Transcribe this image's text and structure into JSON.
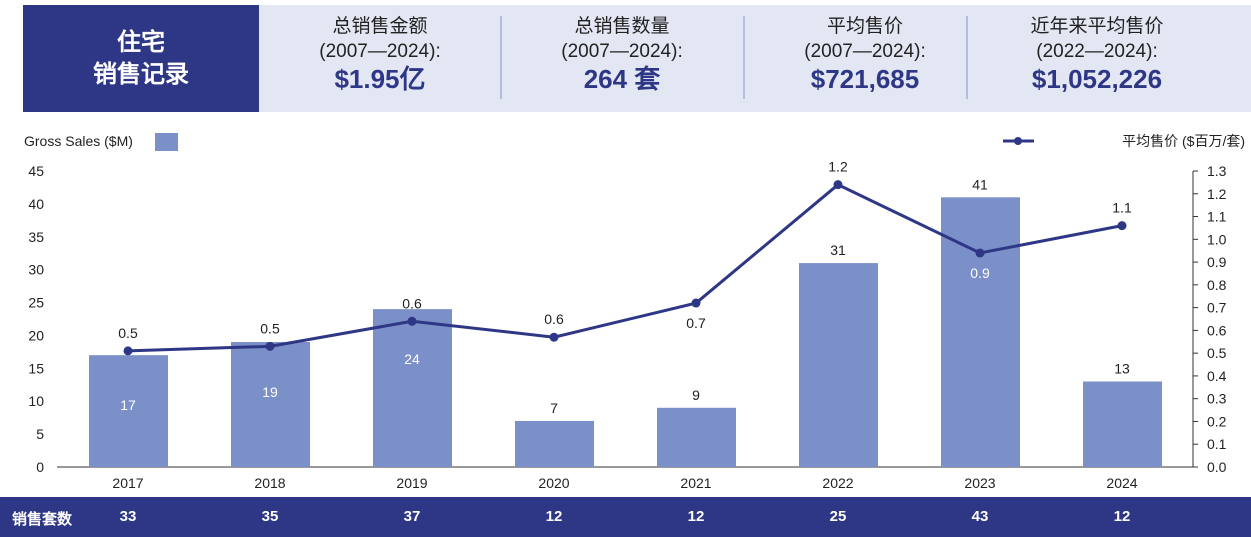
{
  "header": {
    "title_line1": "住宅",
    "title_line2": "销售记录",
    "stats": [
      {
        "label": "总销售金额",
        "period": "(2007—2024):",
        "value": "$1.95亿"
      },
      {
        "label": "总销售数量",
        "period": "(2007—2024):",
        "value": "264 套"
      },
      {
        "label": "平均售价",
        "period": "(2007—2024):",
        "value": "$721,685"
      },
      {
        "label": "近年来平均售价",
        "period": "(2022—2024):",
        "value": "$1,052,226"
      }
    ]
  },
  "colors": {
    "navy": "#2e3785",
    "bar": "#7b8fc8",
    "header_bg": "#e3e7f3"
  },
  "chart_data": {
    "type": "bar+line",
    "categories": [
      "2017",
      "2018",
      "2019",
      "2020",
      "2021",
      "2022",
      "2023",
      "2024"
    ],
    "series": [
      {
        "name": "Gross Sales ($M)",
        "type": "bar",
        "axis": "left",
        "values": [
          17,
          19,
          24,
          7,
          9,
          31,
          41,
          13
        ],
        "labels": [
          "17",
          "19",
          "24",
          "7",
          "9",
          "31",
          "41",
          "13"
        ]
      },
      {
        "name": "平均售价 ($百万/套)",
        "type": "line",
        "axis": "right",
        "values": [
          0.51,
          0.53,
          0.64,
          0.57,
          0.72,
          1.24,
          0.94,
          1.06
        ],
        "labels": [
          "0.5",
          "0.5",
          "0.6",
          "0.6",
          "0.7",
          "1.2",
          "0.9",
          "1.1"
        ]
      }
    ],
    "left_axis": {
      "range": [
        0,
        45
      ],
      "ticks": [
        "0",
        "5",
        "10",
        "15",
        "20",
        "25",
        "30",
        "35",
        "40",
        "45"
      ]
    },
    "right_axis": {
      "range": [
        0,
        1.3
      ],
      "ticks": [
        "0.0",
        "0.1",
        "0.2",
        "0.3",
        "0.4",
        "0.5",
        "0.6",
        "0.7",
        "0.8",
        "0.9",
        "1.0",
        "1.1",
        "1.2",
        "1.3"
      ]
    },
    "grid": false,
    "legend": "top"
  },
  "units_row": {
    "label": "销售套数",
    "values": [
      "33",
      "35",
      "37",
      "12",
      "12",
      "25",
      "43",
      "12"
    ]
  }
}
